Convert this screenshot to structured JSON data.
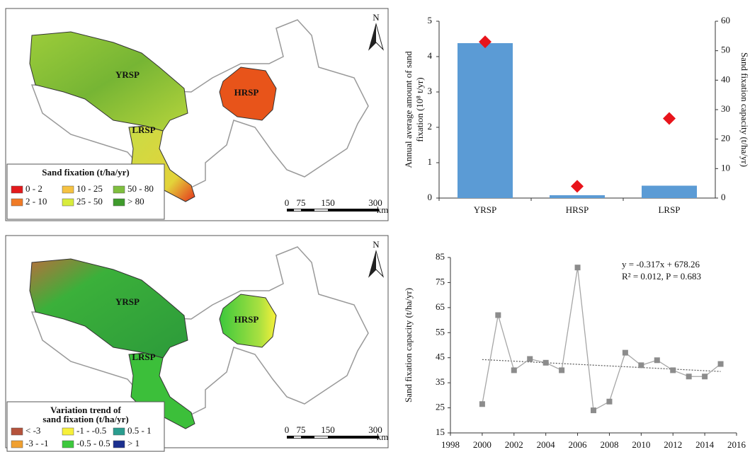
{
  "maps": [
    {
      "north": "N",
      "regions": [
        "YRSP",
        "HRSP",
        "LRSP"
      ],
      "legend": {
        "title": [
          "Sand fixation (t/ha/yr)"
        ],
        "items": [
          {
            "label": "0 - 2",
            "color": "#e31a1c"
          },
          {
            "label": "10 - 25",
            "color": "#f5c242"
          },
          {
            "label": "50 - 80",
            "color": "#7fbf3f"
          },
          {
            "label": "2 - 10",
            "color": "#f07b27"
          },
          {
            "label": "25 - 50",
            "color": "#d8ec3c"
          },
          {
            "label": "> 80",
            "color": "#3f9b2c"
          }
        ]
      },
      "scale": [
        "0",
        "75",
        "150",
        "300"
      ],
      "scale_unit": "km"
    },
    {
      "north": "N",
      "regions": [
        "YRSP",
        "HRSP",
        "LRSP"
      ],
      "legend": {
        "title": [
          "Variation trend of",
          "sand fixation (t/ha/yr)"
        ],
        "items": [
          {
            "label": "< -3",
            "color": "#b5533c"
          },
          {
            "label": "-1 - -0.5",
            "color": "#f7f03a"
          },
          {
            "label": "0.5 - 1",
            "color": "#2a9d8f"
          },
          {
            "label": "-3 - -1",
            "color": "#f0a030"
          },
          {
            "label": "-0.5 - 0.5",
            "color": "#3cc83c"
          },
          {
            "label": "> 1",
            "color": "#1b2f8f"
          }
        ]
      },
      "scale": [
        "0",
        "75",
        "150",
        "300"
      ],
      "scale_unit": "km"
    }
  ],
  "chart_data": [
    {
      "type": "bar",
      "categories": [
        "YRSP",
        "HRSP",
        "LRSP"
      ],
      "ylabel": [
        "Annual average amount of sand",
        "fixation (10⁸ t/yr)"
      ],
      "y2label": "Sand fixation capacity (t/ha/yr)",
      "series": [
        {
          "color": "#5b9bd5",
          "values": [
            4.38,
            0.08,
            0.35
          ]
        },
        {
          "color": "#e8141b",
          "values": [
            53,
            4,
            27
          ],
          "axis": "y2",
          "marker": "diamond"
        }
      ],
      "ylim": [
        0,
        5
      ],
      "yticks": [
        0,
        1,
        2,
        3,
        4,
        5
      ],
      "y2lim": [
        0,
        60
      ],
      "y2ticks": [
        0,
        10,
        20,
        30,
        40,
        50,
        60
      ],
      "grid": false
    },
    {
      "type": "line",
      "ylabel": "Sand fixation capacity (t/ha/yr)",
      "x": [
        2000,
        2001,
        2002,
        2003,
        2004,
        2005,
        2006,
        2007,
        2008,
        2009,
        2010,
        2011,
        2012,
        2013,
        2014,
        2015
      ],
      "series": [
        {
          "color": "#8c8c8c",
          "values": [
            26.5,
            62,
            40,
            44.5,
            43,
            40,
            81,
            24,
            27.5,
            47,
            42,
            44,
            40,
            37.5,
            37.5,
            42.5
          ],
          "marker": "square"
        }
      ],
      "trendline": {
        "slope": -0.317,
        "intercept": 678.26
      },
      "annotations": [
        "y = -0.317x + 678.26",
        "R² = 0.012, P = 0.683"
      ],
      "xlim": [
        1998,
        2016
      ],
      "xticks": [
        1998,
        2000,
        2002,
        2004,
        2006,
        2008,
        2010,
        2012,
        2014,
        2016
      ],
      "ylim": [
        15,
        85
      ],
      "yticks": [
        15,
        25,
        35,
        45,
        55,
        65,
        75,
        85
      ],
      "grid": false
    }
  ]
}
